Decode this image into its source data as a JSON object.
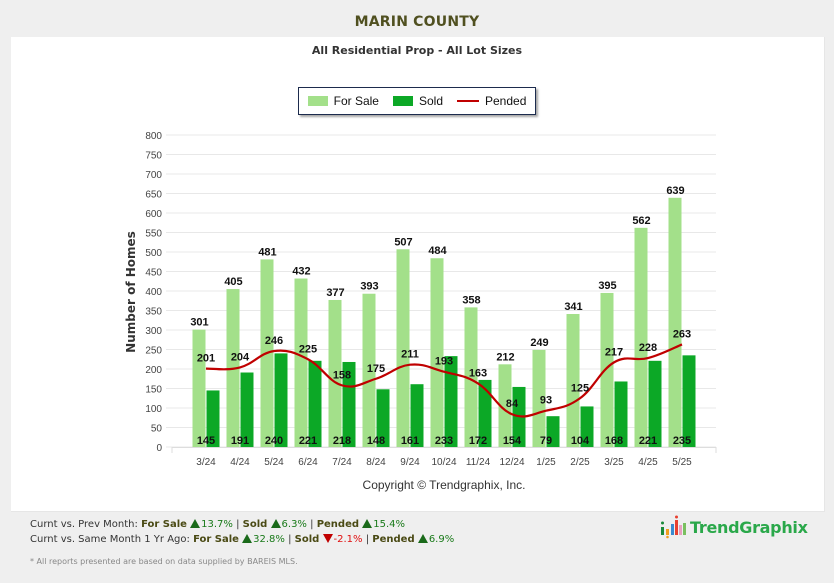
{
  "header": {
    "county_title": "MARIN COUNTY",
    "subtitle": "All Residential Prop - All Lot Sizes"
  },
  "legend": {
    "items": [
      {
        "label": "For Sale",
        "color": "#a3e08a",
        "kind": "bar"
      },
      {
        "label": "Sold",
        "color": "#0ca826",
        "kind": "bar"
      },
      {
        "label": "Pended",
        "color": "#c00000",
        "kind": "line"
      }
    ]
  },
  "chart_data": {
    "type": "bar",
    "title": "All Residential Prop - All Lot Sizes",
    "xlabel": "",
    "ylabel": "Number of Homes",
    "ylim": [
      0,
      800
    ],
    "yticks": [
      0,
      50,
      100,
      150,
      200,
      250,
      300,
      350,
      400,
      450,
      500,
      550,
      600,
      650,
      700,
      750,
      800
    ],
    "grid": true,
    "legend_position": "top-center",
    "categories": [
      "3/24",
      "4/24",
      "5/24",
      "6/24",
      "7/24",
      "8/24",
      "9/24",
      "10/24",
      "11/24",
      "12/24",
      "1/25",
      "2/25",
      "3/25",
      "4/25",
      "5/25"
    ],
    "series": [
      {
        "name": "For Sale",
        "type": "bar",
        "color": "#a3e08a",
        "values": [
          301,
          405,
          481,
          432,
          377,
          393,
          507,
          484,
          358,
          212,
          249,
          341,
          395,
          562,
          639
        ]
      },
      {
        "name": "Sold",
        "type": "bar",
        "color": "#0ca826",
        "values": [
          145,
          191,
          240,
          221,
          218,
          148,
          161,
          233,
          172,
          154,
          79,
          104,
          168,
          221,
          235
        ]
      },
      {
        "name": "Pended",
        "type": "line",
        "color": "#c00000",
        "values": [
          201,
          204,
          246,
          225,
          158,
          175,
          211,
          193,
          163,
          84,
          93,
          125,
          217,
          228,
          263
        ]
      }
    ]
  },
  "copyright": "Copyright © Trendgraphix, Inc.",
  "stats": {
    "prev_month": {
      "label": "Curnt vs. Prev Month:",
      "for_sale_label": "For Sale",
      "for_sale_value": "13.7%",
      "for_sale_dir": "up",
      "sold_label": "Sold",
      "sold_value": "6.3%",
      "sold_dir": "up",
      "pended_label": "Pended",
      "pended_value": "15.4%",
      "pended_dir": "up"
    },
    "year_ago": {
      "label": "Curnt vs. Same Month 1 Yr Ago:",
      "for_sale_label": "For Sale",
      "for_sale_value": "32.8%",
      "for_sale_dir": "up",
      "sold_label": "Sold",
      "sold_value": "-2.1%",
      "sold_dir": "down",
      "pended_label": "Pended",
      "pended_value": "6.9%",
      "pended_dir": "up"
    },
    "separator": "|"
  },
  "footnote": "* All reports presented are based on data supplied by BAREIS MLS.",
  "brand": {
    "name": "TrendGraphix",
    "icon": "bar-chart-logo-icon"
  }
}
